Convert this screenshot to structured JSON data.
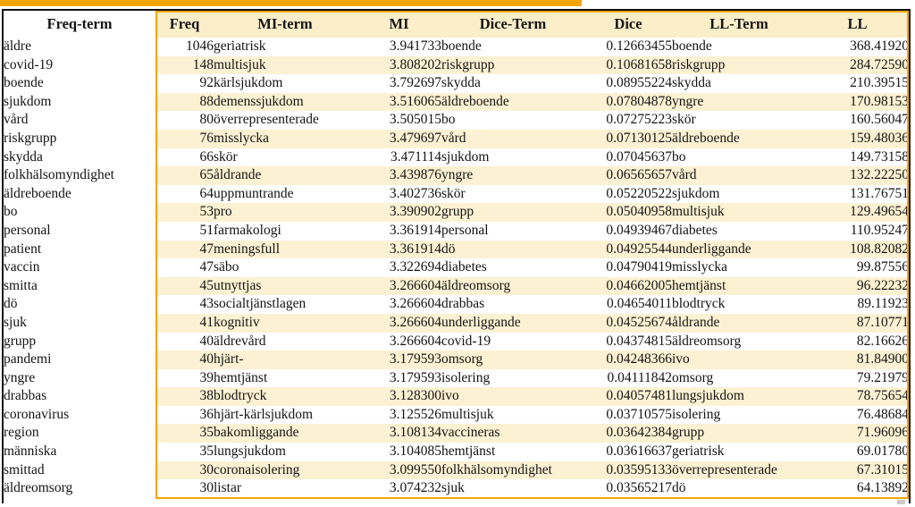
{
  "colors": {
    "accent_orange": "#f5a502",
    "header_cream": "#fbeec9",
    "stripe_cream": "#fdf1d3",
    "frame_black": "#111111",
    "text": "#141414"
  },
  "table": {
    "column_keys": [
      "freq_term",
      "freq",
      "mi_term",
      "mi",
      "dice_term",
      "dice",
      "ll_term",
      "ll"
    ],
    "headers": {
      "freq_term": "Freq-term",
      "freq": "Freq",
      "mi_term": "MI-term",
      "mi": "MI",
      "dice_term": "Dice-Term",
      "dice": "Dice",
      "ll_term": "LL-Term",
      "ll": "LL"
    },
    "rows": [
      {
        "freq_term": "äldre",
        "freq": "1046",
        "mi_term": "geriatrisk",
        "mi": "3.941733",
        "dice_term": "boende",
        "dice": "0.12663455",
        "ll_term": "boende",
        "ll": "368.41920"
      },
      {
        "freq_term": "covid-19",
        "freq": "148",
        "mi_term": "multisjuk",
        "mi": "3.808202",
        "dice_term": "riskgrupp",
        "dice": "0.10681658",
        "ll_term": "riskgrupp",
        "ll": "284.72590"
      },
      {
        "freq_term": "boende",
        "freq": "92",
        "mi_term": "kärlsjukdom",
        "mi": "3.792697",
        "dice_term": "skydda",
        "dice": "0.08955224",
        "ll_term": "skydda",
        "ll": "210.39515"
      },
      {
        "freq_term": "sjukdom",
        "freq": "88",
        "mi_term": "demenssjukdom",
        "mi": "3.516065",
        "dice_term": "äldreboende",
        "dice": "0.07804878",
        "ll_term": "yngre",
        "ll": "170.98153"
      },
      {
        "freq_term": "vård",
        "freq": "80",
        "mi_term": "överrepresenterade",
        "mi": "3.505015",
        "dice_term": "bo",
        "dice": "0.07275223",
        "ll_term": "skör",
        "ll": "160.56047"
      },
      {
        "freq_term": "riskgrupp",
        "freq": "76",
        "mi_term": "misslycka",
        "mi": "3.479697",
        "dice_term": "vård",
        "dice": "0.07130125",
        "ll_term": "äldreboende",
        "ll": "159.48036"
      },
      {
        "freq_term": "skydda",
        "freq": "66",
        "mi_term": "skör",
        "mi": "3.471114",
        "dice_term": "sjukdom",
        "dice": "0.07045637",
        "ll_term": "bo",
        "ll": "149.73158"
      },
      {
        "freq_term": "folkhälsomyndighet",
        "freq": "65",
        "mi_term": "åldrande",
        "mi": "3.439876",
        "dice_term": "yngre",
        "dice": "0.06565657",
        "ll_term": "vård",
        "ll": "132.22250"
      },
      {
        "freq_term": "äldreboende",
        "freq": "64",
        "mi_term": "uppmuntrande",
        "mi": "3.402736",
        "dice_term": "skör",
        "dice": "0.05220522",
        "ll_term": "sjukdom",
        "ll": "131.76751"
      },
      {
        "freq_term": "bo",
        "freq": "53",
        "mi_term": "pro",
        "mi": "3.390902",
        "dice_term": "grupp",
        "dice": "0.05040958",
        "ll_term": "multisjuk",
        "ll": "129.49654"
      },
      {
        "freq_term": "personal",
        "freq": "51",
        "mi_term": "farmakologi",
        "mi": "3.361914",
        "dice_term": "personal",
        "dice": "0.04939467",
        "ll_term": "diabetes",
        "ll": "110.95247"
      },
      {
        "freq_term": "patient",
        "freq": "47",
        "mi_term": "meningsfull",
        "mi": "3.361914",
        "dice_term": "dö",
        "dice": "0.04925544",
        "ll_term": "underliggande",
        "ll": "108.82082"
      },
      {
        "freq_term": "vaccin",
        "freq": "47",
        "mi_term": "säbo",
        "mi": "3.322694",
        "dice_term": "diabetes",
        "dice": "0.04790419",
        "ll_term": "misslycka",
        "ll": "99.87556"
      },
      {
        "freq_term": "smitta",
        "freq": "45",
        "mi_term": "utnyttjas",
        "mi": "3.266604",
        "dice_term": "äldreomsorg",
        "dice": "0.04662005",
        "ll_term": "hemtjänst",
        "ll": "96.22232"
      },
      {
        "freq_term": "dö",
        "freq": "43",
        "mi_term": "socialtjänstlagen",
        "mi": "3.266604",
        "dice_term": "drabbas",
        "dice": "0.04654011",
        "ll_term": "blodtryck",
        "ll": "89.11923"
      },
      {
        "freq_term": "sjuk",
        "freq": "41",
        "mi_term": "kognitiv",
        "mi": "3.266604",
        "dice_term": "underliggande",
        "dice": "0.04525674",
        "ll_term": "åldrande",
        "ll": "87.10771"
      },
      {
        "freq_term": "grupp",
        "freq": "40",
        "mi_term": "äldrevård",
        "mi": "3.266604",
        "dice_term": "covid-19",
        "dice": "0.04374815",
        "ll_term": "äldreomsorg",
        "ll": "82.16626"
      },
      {
        "freq_term": "pandemi",
        "freq": "40",
        "mi_term": "hjärt-",
        "mi": "3.179593",
        "dice_term": "omsorg",
        "dice": "0.04248366",
        "ll_term": "ivo",
        "ll": "81.84900"
      },
      {
        "freq_term": "yngre",
        "freq": "39",
        "mi_term": "hemtjänst",
        "mi": "3.179593",
        "dice_term": "isolering",
        "dice": "0.04111842",
        "ll_term": "omsorg",
        "ll": "79.21979"
      },
      {
        "freq_term": "drabbas",
        "freq": "38",
        "mi_term": "blodtryck",
        "mi": "3.128300",
        "dice_term": "ivo",
        "dice": "0.04057481",
        "ll_term": "lungsjukdom",
        "ll": "78.75654"
      },
      {
        "freq_term": "coronavirus",
        "freq": "36",
        "mi_term": "hjärt-kärlsjukdom",
        "mi": "3.125526",
        "dice_term": "multisjuk",
        "dice": "0.03710575",
        "ll_term": "isolering",
        "ll": "76.48684"
      },
      {
        "freq_term": "region",
        "freq": "35",
        "mi_term": "bakomliggande",
        "mi": "3.108134",
        "dice_term": "vaccineras",
        "dice": "0.03642384",
        "ll_term": "grupp",
        "ll": "71.96096"
      },
      {
        "freq_term": "människa",
        "freq": "35",
        "mi_term": "lungsjukdom",
        "mi": "3.104085",
        "dice_term": "hemtjänst",
        "dice": "0.03616637",
        "ll_term": "geriatrisk",
        "ll": "69.01780"
      },
      {
        "freq_term": "smittad",
        "freq": "30",
        "mi_term": "coronaisolering",
        "mi": "3.099550",
        "dice_term": "folkhälsomyndighet",
        "dice": "0.03595133",
        "ll_term": "överrepresenterade",
        "ll": "67.31015"
      },
      {
        "freq_term": "äldreomsorg",
        "freq": "30",
        "mi_term": "listar",
        "mi": "3.074232",
        "dice_term": "sjuk",
        "dice": "0.03565217",
        "ll_term": "dö",
        "ll": "64.13892"
      }
    ]
  }
}
